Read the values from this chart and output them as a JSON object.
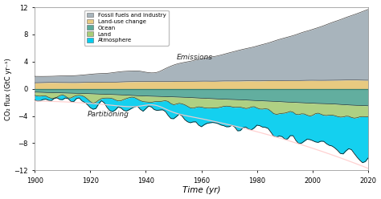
{
  "xlabel": "Time (yr)",
  "ylabel": "CO₂ flux (GtC yr⁻¹)",
  "xlim": [
    1900,
    2020
  ],
  "ylim": [
    -12,
    12
  ],
  "yticks": [
    -12,
    -8,
    -4,
    0,
    4,
    8,
    12
  ],
  "xticks": [
    1900,
    1920,
    1940,
    1960,
    1980,
    2000,
    2020
  ],
  "colors": {
    "fossil": "#a8b4bc",
    "landuse": "#e8ca80",
    "ocean": "#5aaa9a",
    "land": "#a8cc78",
    "atmosphere": "#00ccee"
  },
  "legend_labels": [
    "Fossil fuels and industry",
    "Land-use change",
    "Ocean",
    "Land",
    "Atmosphere"
  ],
  "emissions_label": "Emissions",
  "partitioning_label": "Partitioning",
  "bg_color": "#ffffff"
}
